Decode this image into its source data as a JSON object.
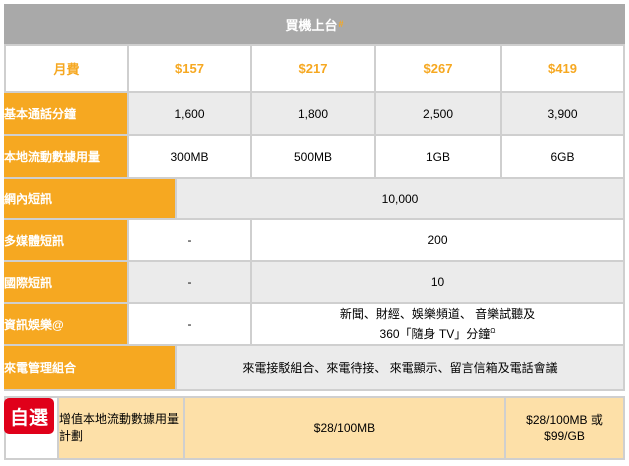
{
  "table": {
    "title": "買機上台",
    "title_mark": "#",
    "header": {
      "label": "月費",
      "plans": [
        "$157",
        "$217",
        "$267",
        "$419"
      ]
    },
    "rows": [
      {
        "label": "基本通話分鐘",
        "values": [
          "1,600",
          "1,800",
          "2,500",
          "3,900"
        ]
      },
      {
        "label": "本地流動數據用量",
        "values": [
          "300MB",
          "500MB",
          "1GB",
          "6GB"
        ]
      },
      {
        "label": "網內短訊",
        "value": "10,000"
      },
      {
        "label": "多媒體短訊",
        "first": "-",
        "rest": "200"
      },
      {
        "label": "國際短訊",
        "first": "-",
        "rest": "10"
      },
      {
        "label": "資訊娛樂@",
        "first": "-",
        "rest_line1": "新聞、財經、娛樂頻道、 音樂試聽及",
        "rest_line2": "360「隨身 TV」分鐘",
        "rest_mark": "Ω"
      },
      {
        "label": "來電管理組合",
        "value": "來電接駁組合、來電待接、 來電顯示、留言信箱及電話會議"
      }
    ]
  },
  "optional": {
    "badge": "自選",
    "label": "增值本地流動數據用量計劃",
    "value_main": "$28/100MB",
    "value_last_line1": "$28/100MB 或",
    "value_last_line2": "$99/GB"
  }
}
